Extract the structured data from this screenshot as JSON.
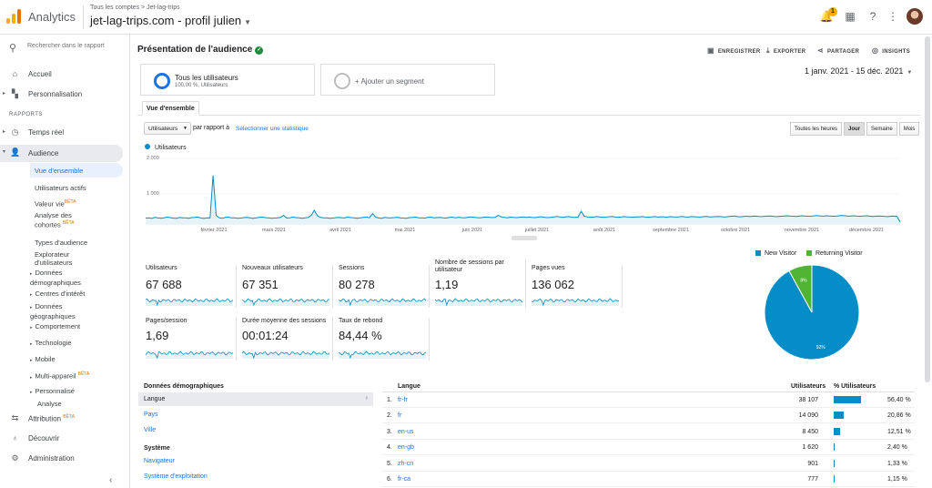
{
  "app": {
    "name": "Analytics",
    "breadcrumb": [
      "Tous les comptes",
      "Jet-lag-trips"
    ],
    "property": "jet-lag-trips.com - profil julien",
    "notifications": "1"
  },
  "sidebar": {
    "search_placeholder": "Rechercher dans le rapport",
    "top_items": [
      {
        "label": "Accueil",
        "icon": "home-icon"
      },
      {
        "label": "Personnalisation",
        "icon": "dashboard-icon"
      }
    ],
    "reports_label": "RAPPORTS",
    "report_items": [
      {
        "label": "Temps réel",
        "icon": "clock-icon"
      },
      {
        "label": "Audience",
        "icon": "person-icon"
      }
    ],
    "audience_sub": {
      "overview": "Vue d'ensemble",
      "active_users": "Utilisateurs actifs",
      "lifetime_value": "Valeur vie",
      "cohort": "Analyse des cohortes",
      "audiences": "Types d'audience",
      "explorer": "Explorateur d'utilisateurs",
      "demographics": "Données démographiques",
      "interests": "Centres d'intérêt",
      "geo": "Données géographiques",
      "behavior": "Comportement",
      "technology": "Technologie",
      "mobile": "Mobile",
      "multi_device": "Multi-appareil",
      "custom": "Personnalisé",
      "analysis": "Analyse"
    },
    "beta_label": "BÊTA",
    "bottom_items": [
      {
        "label": "Attribution",
        "icon": "attribution-icon"
      },
      {
        "label": "Découvrir",
        "icon": "lightbulb-icon"
      },
      {
        "label": "Administration",
        "icon": "gear-icon"
      }
    ]
  },
  "header": {
    "title": "Présentation de l'audience",
    "actions": [
      "ENREGISTRER",
      "EXPORTER",
      "PARTAGER",
      "INSIGHTS"
    ]
  },
  "segments": {
    "active_title": "Tous les utilisateurs",
    "active_sub": "100,00 %, Utilisateurs",
    "add_label": "+ Ajouter un segment"
  },
  "date_range": "1 janv. 2021 - 15 déc. 2021",
  "tab": "Vue d'ensemble",
  "controls": {
    "metric": "Utilisateurs",
    "compare_label": "par rapport à",
    "select_metric": "Sélectionner une statistique",
    "granularity": [
      "Toutes les heures",
      "Jour",
      "Semaine",
      "Mois"
    ],
    "granularity_active": "Jour"
  },
  "colors": {
    "accent": "#058dc7",
    "returning": "#50b432",
    "link": "#1a73e8"
  },
  "chart_data": [
    {
      "type": "line",
      "series": [
        {
          "name": "Utilisateurs"
        }
      ],
      "yticks": [
        "2 000",
        "1 000"
      ],
      "ylim": [
        0,
        2000
      ],
      "xticks": [
        "février 2021",
        "mars 2021",
        "avril 2021",
        "mai 2021",
        "juin 2021",
        "juillet 2021",
        "août 2021",
        "septembre 2021",
        "octobre 2021",
        "novembre 2021",
        "décembre 2021"
      ],
      "values": [
        180,
        190,
        170,
        200,
        185,
        175,
        190,
        210,
        195,
        180,
        170,
        200,
        190,
        185,
        175,
        195,
        200,
        210,
        180,
        170,
        190,
        185,
        1480,
        260,
        190,
        175,
        200,
        210,
        185,
        190,
        175,
        180,
        195,
        200,
        185,
        170,
        190,
        200,
        210,
        195,
        185,
        175,
        180,
        190,
        200,
        260,
        180,
        190,
        210,
        195,
        185,
        175,
        190,
        200,
        260,
        420,
        250,
        200,
        185,
        190,
        175,
        180,
        195,
        200,
        185,
        190,
        210,
        195,
        185,
        175,
        190,
        200,
        210,
        190,
        320,
        210,
        180,
        175,
        200,
        190,
        185,
        195,
        205,
        190,
        180,
        175,
        195,
        200,
        210,
        190,
        185,
        180,
        200,
        210,
        190,
        195,
        200,
        185,
        180,
        200,
        210,
        190,
        205,
        195,
        185,
        200,
        215,
        205,
        195,
        190,
        200,
        210,
        205,
        195,
        205,
        260,
        215,
        200,
        190,
        210,
        200,
        195,
        205,
        215,
        200,
        210,
        200,
        195,
        210,
        220,
        205,
        195,
        200,
        210,
        230,
        215,
        200,
        215,
        225,
        205,
        200,
        210,
        390,
        240,
        215,
        205,
        210,
        225,
        215,
        205,
        210,
        220,
        230,
        215,
        205,
        210,
        225,
        215,
        210,
        205,
        220,
        215,
        225,
        210,
        205,
        215,
        225,
        210,
        220,
        215,
        205,
        225,
        215,
        210,
        220,
        230,
        215,
        210,
        225,
        220,
        215,
        210,
        225,
        230,
        215,
        220,
        225,
        230,
        220,
        215,
        225,
        235,
        245,
        225,
        220,
        230,
        240,
        225,
        235,
        240,
        230,
        225,
        235,
        245,
        240,
        230,
        225,
        235,
        240,
        250,
        245,
        235,
        230,
        240,
        250,
        245,
        235,
        240,
        250,
        255,
        245,
        240,
        250,
        245,
        235,
        240,
        250,
        260,
        250,
        240,
        245,
        250,
        240,
        235,
        245,
        250,
        240,
        230,
        235,
        245,
        240,
        230,
        225,
        235,
        240,
        230,
        60
      ]
    },
    {
      "type": "pie",
      "slices": [
        {
          "name": "New Visitor",
          "value": 92,
          "label": "92%"
        },
        {
          "name": "Returning Visitor",
          "value": 8,
          "label": "8%"
        }
      ]
    }
  ],
  "scorecards": [
    {
      "label": "Utilisateurs",
      "value": "67 688"
    },
    {
      "label": "Nouveaux utilisateurs",
      "value": "67 351"
    },
    {
      "label": "Sessions",
      "value": "80 278"
    },
    {
      "label": "Nombre de sessions par utilisateur",
      "value": "1,19"
    },
    {
      "label": "Pages vues",
      "value": "136 062"
    },
    {
      "label": "Pages/session",
      "value": "1,69"
    },
    {
      "label": "Durée moyenne des sessions",
      "value": "00:01:24"
    },
    {
      "label": "Taux de rebond",
      "value": "84,44 %"
    }
  ],
  "demographics": {
    "title": "Données démographiques",
    "items": [
      "Langue",
      "Pays",
      "Ville"
    ],
    "system_title": "Système",
    "system_items": [
      "Navigateur",
      "Système d'exploitation"
    ]
  },
  "language_table": {
    "headers": {
      "lang": "Langue",
      "users": "Utilisateurs",
      "pct": "% Utilisateurs"
    },
    "rows": [
      {
        "num": "1.",
        "lang": "fr-fr",
        "users": "38 107",
        "pct": "56,40 %",
        "share": 56.4
      },
      {
        "num": "2.",
        "lang": "fr",
        "users": "14 090",
        "pct": "20,86 %",
        "share": 20.86
      },
      {
        "num": "3.",
        "lang": "en-us",
        "users": "8 450",
        "pct": "12,51 %",
        "share": 12.51
      },
      {
        "num": "4.",
        "lang": "en-gb",
        "users": "1 620",
        "pct": "2,40 %",
        "share": 2.4
      },
      {
        "num": "5.",
        "lang": "zh-cn",
        "users": "901",
        "pct": "1,33 %",
        "share": 1.33
      },
      {
        "num": "6.",
        "lang": "fr-ca",
        "users": "777",
        "pct": "1,15 %",
        "share": 1.15
      }
    ]
  }
}
